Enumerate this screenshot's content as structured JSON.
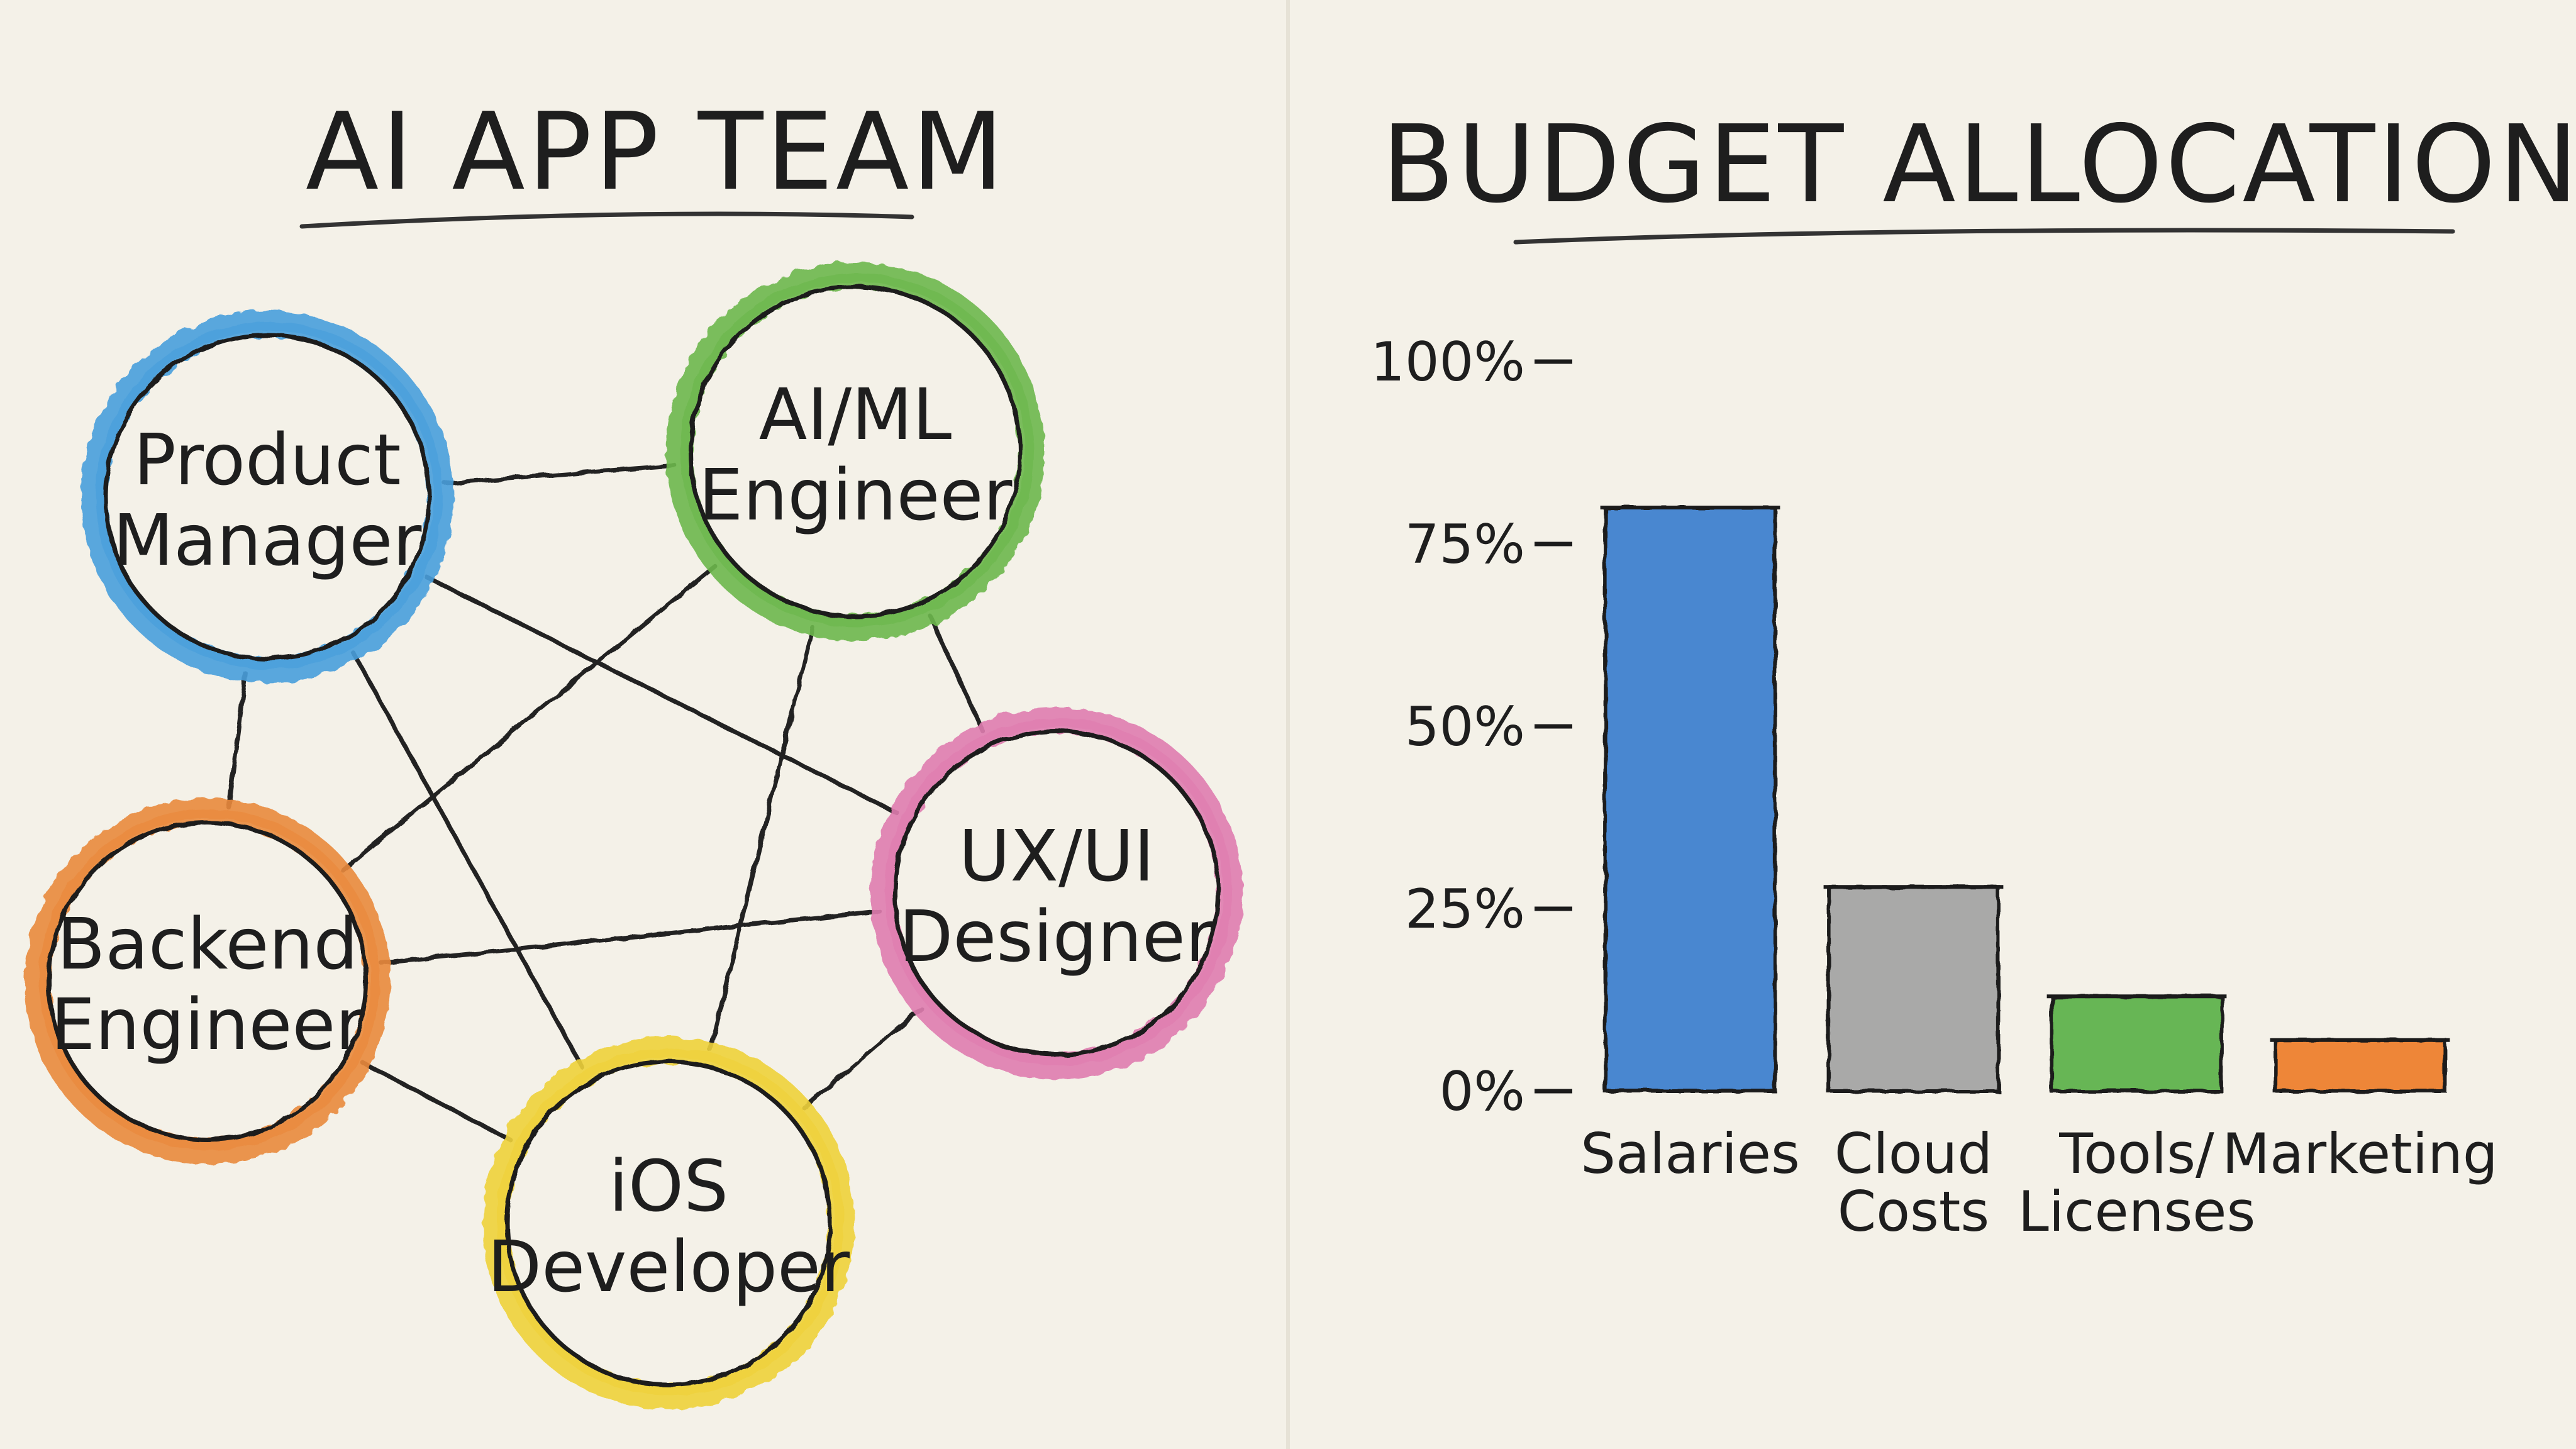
{
  "left_panel": {
    "title": "AI APP TEAM",
    "nodes": [
      {
        "id": "pm",
        "lines": [
          "Product",
          "Manager"
        ],
        "color": "#4a9fdc"
      },
      {
        "id": "ml",
        "lines": [
          "AI/ML",
          "Engineer"
        ],
        "color": "#6db84e"
      },
      {
        "id": "ux",
        "lines": [
          "UX/UI",
          "Designer"
        ],
        "color": "#e07db0"
      },
      {
        "id": "be",
        "lines": [
          "Backend",
          "Engineer"
        ],
        "color": "#ea8a3e"
      },
      {
        "id": "ios",
        "lines": [
          "iOS",
          "Developer"
        ],
        "color": "#efd23a"
      }
    ],
    "connections": [
      [
        "pm",
        "ml"
      ],
      [
        "pm",
        "be"
      ],
      [
        "pm",
        "ux"
      ],
      [
        "pm",
        "ios"
      ],
      [
        "ml",
        "be"
      ],
      [
        "ml",
        "ux"
      ],
      [
        "ml",
        "ios"
      ],
      [
        "be",
        "ux"
      ],
      [
        "be",
        "ios"
      ],
      [
        "ux",
        "ios"
      ]
    ]
  },
  "chart_data": {
    "type": "bar",
    "title": "BUDGET ALLOCATION",
    "categories": [
      [
        "Salaries"
      ],
      [
        "Cloud",
        "Costs"
      ],
      [
        "Tools/",
        "Licenses"
      ],
      [
        "Marketing"
      ]
    ],
    "values": [
      80,
      28,
      13,
      7
    ],
    "colors": [
      "#3a7fcf",
      "#a3a3a3",
      "#5cb14a",
      "#ee7d2a"
    ],
    "ylim": [
      0,
      100
    ],
    "yticks": [
      0,
      25,
      50,
      75,
      100
    ],
    "ytick_labels": [
      "0%",
      "25%",
      "50%",
      "75%",
      "100%"
    ],
    "xlabel": "",
    "ylabel": "",
    "grid": false
  }
}
